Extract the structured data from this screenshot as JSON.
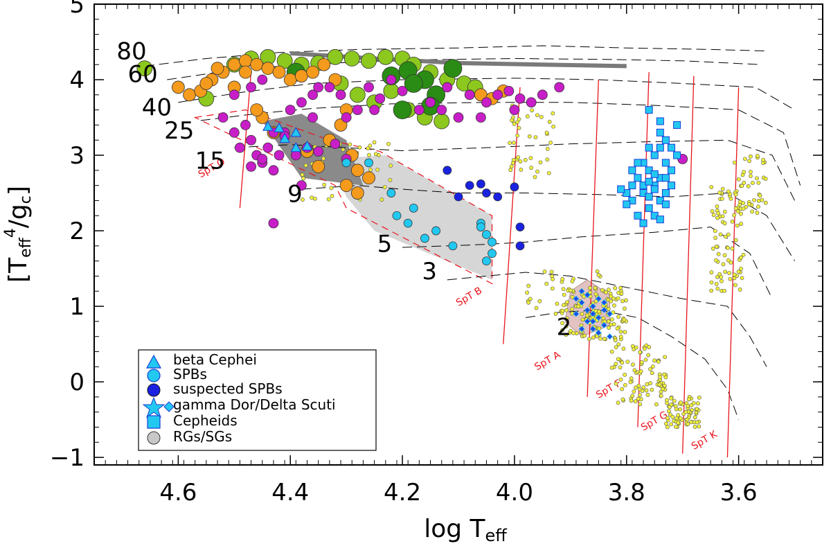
{
  "chart_data": {
    "type": "scatter",
    "title": "",
    "xlabel": "log T",
    "xlabel_sub": "eff",
    "ylabel_bracket_open": "[",
    "ylabel_T": "T",
    "ylabel_sub": "eff",
    "ylabel_sup": "4",
    "ylabel_slash": "/",
    "ylabel_g": "g",
    "ylabel_gsub": "c",
    "ylabel_bracket_close": "]",
    "xlim": [
      4.75,
      3.45
    ],
    "ylim": [
      -1.1,
      5.0
    ],
    "x_ticks": [
      {
        "value": 4.6,
        "label": "4.6"
      },
      {
        "value": 4.4,
        "label": "4.4"
      },
      {
        "value": 4.2,
        "label": "4.2"
      },
      {
        "value": 4.0,
        "label": "4.0"
      },
      {
        "value": 3.8,
        "label": "3.8"
      },
      {
        "value": 3.6,
        "label": "3.6"
      }
    ],
    "y_ticks": [
      {
        "value": 5,
        "label": "5"
      },
      {
        "value": 4,
        "label": "4"
      },
      {
        "value": 3,
        "label": "3"
      },
      {
        "value": 2,
        "label": "2"
      },
      {
        "value": 1,
        "label": "1"
      },
      {
        "value": 0,
        "label": "0"
      },
      {
        "value": -1,
        "label": "−1"
      }
    ],
    "mass_labels": [
      {
        "text": "80",
        "x": 4.71,
        "y": 4.27
      },
      {
        "text": "60",
        "x": 4.69,
        "y": 3.97
      },
      {
        "text": "40",
        "x": 4.665,
        "y": 3.53
      },
      {
        "text": "25",
        "x": 4.625,
        "y": 3.22
      },
      {
        "text": "15",
        "x": 4.57,
        "y": 2.82
      },
      {
        "text": "9",
        "x": 4.405,
        "y": 2.38
      },
      {
        "text": "5",
        "x": 4.245,
        "y": 1.72
      },
      {
        "text": "3",
        "x": 4.165,
        "y": 1.36
      },
      {
        "text": "2",
        "x": 3.925,
        "y": 0.62
      }
    ],
    "tracks": [
      {
        "mass": "80",
        "points": [
          [
            4.66,
            4.18
          ],
          [
            4.55,
            4.28
          ],
          [
            4.42,
            4.36
          ],
          [
            4.28,
            4.4
          ],
          [
            4.1,
            4.42
          ],
          [
            3.95,
            4.45
          ],
          [
            3.8,
            4.42
          ],
          [
            3.65,
            4.4
          ],
          [
            3.55,
            4.38
          ]
        ]
      },
      {
        "mass": "60",
        "points": [
          [
            4.62,
            4.0
          ],
          [
            4.5,
            4.13
          ],
          [
            4.38,
            4.2
          ],
          [
            4.2,
            4.26
          ],
          [
            4.0,
            4.28
          ],
          [
            3.85,
            4.27
          ],
          [
            3.7,
            4.25
          ],
          [
            3.56,
            4.2
          ]
        ]
      },
      {
        "mass": "40",
        "points": [
          [
            4.6,
            3.7
          ],
          [
            4.48,
            3.84
          ],
          [
            4.36,
            3.95
          ],
          [
            4.2,
            4.0
          ],
          [
            4.0,
            4.02
          ],
          [
            3.85,
            4.0
          ],
          [
            3.7,
            3.95
          ],
          [
            3.57,
            3.9
          ],
          [
            3.5,
            3.6
          ]
        ]
      },
      {
        "mass": "25",
        "points": [
          [
            4.56,
            3.46
          ],
          [
            4.46,
            3.55
          ],
          [
            4.36,
            3.62
          ],
          [
            4.22,
            3.68
          ],
          [
            4.05,
            3.7
          ],
          [
            3.9,
            3.7
          ],
          [
            3.75,
            3.66
          ],
          [
            3.6,
            3.6
          ],
          [
            3.52,
            3.3
          ],
          [
            3.49,
            2.6
          ]
        ]
      },
      {
        "mass": "15",
        "points": [
          [
            4.5,
            3.1
          ],
          [
            4.4,
            3.14
          ],
          [
            4.3,
            3.1
          ],
          [
            4.2,
            3.06
          ],
          [
            4.05,
            3.1
          ],
          [
            3.9,
            3.15
          ],
          [
            3.75,
            3.18
          ],
          [
            3.62,
            3.2
          ],
          [
            3.54,
            3.0
          ],
          [
            3.5,
            2.4
          ]
        ]
      },
      {
        "mass": "9",
        "points": [
          [
            4.38,
            2.55
          ],
          [
            4.28,
            2.6
          ],
          [
            4.2,
            2.55
          ],
          [
            4.1,
            2.5
          ],
          [
            3.98,
            2.5
          ],
          [
            3.85,
            2.48
          ],
          [
            3.72,
            2.45
          ],
          [
            3.62,
            2.5
          ],
          [
            3.55,
            2.2
          ],
          [
            3.5,
            1.6
          ]
        ]
      },
      {
        "mass": "5",
        "points": [
          [
            4.2,
            1.78
          ],
          [
            4.12,
            1.8
          ],
          [
            4.05,
            1.82
          ],
          [
            3.98,
            1.85
          ],
          [
            3.88,
            1.92
          ],
          [
            3.75,
            1.98
          ],
          [
            3.65,
            2.05
          ],
          [
            3.58,
            1.7
          ],
          [
            3.54,
            1.1
          ]
        ]
      },
      {
        "mass": "3",
        "points": [
          [
            4.12,
            1.35
          ],
          [
            4.05,
            1.4
          ],
          [
            3.98,
            1.45
          ],
          [
            3.9,
            1.4
          ],
          [
            3.8,
            1.25
          ],
          [
            3.7,
            1.1
          ],
          [
            3.62,
            1.0
          ],
          [
            3.58,
            0.6
          ],
          [
            3.55,
            0.2
          ]
        ]
      },
      {
        "mass": "2",
        "points": [
          [
            3.98,
            0.85
          ],
          [
            3.92,
            0.92
          ],
          [
            3.85,
            0.95
          ],
          [
            3.78,
            0.85
          ],
          [
            3.72,
            0.6
          ],
          [
            3.66,
            0.3
          ],
          [
            3.62,
            -0.1
          ],
          [
            3.6,
            -0.5
          ]
        ]
      }
    ],
    "zams_gray": [
      [
        4.4,
        4.35
      ],
      [
        4.25,
        4.28
      ],
      [
        4.1,
        4.22
      ],
      [
        3.95,
        4.2
      ],
      [
        3.8,
        4.18
      ]
    ],
    "spt_lines": [
      {
        "label": "SpT O",
        "x1": 4.49,
        "y1": 2.3,
        "x2": 4.47,
        "y2": 4.1,
        "label_x": 4.56,
        "label_y": 2.7
      },
      {
        "label": "SpT B",
        "x1": 4.02,
        "y1": 0.5,
        "x2": 3.99,
        "y2": 3.9,
        "label_x": 4.1,
        "label_y": 1.0
      },
      {
        "label": "SpT A",
        "x1": 3.87,
        "y1": -0.2,
        "x2": 3.85,
        "y2": 4.0,
        "label_x": 3.96,
        "label_y": 0.15
      },
      {
        "label": "SpT F",
        "x1": 3.78,
        "y1": -0.6,
        "x2": 3.76,
        "y2": 4.1,
        "label_x": 3.85,
        "label_y": -0.22
      },
      {
        "label": "SpT G",
        "x1": 3.7,
        "y1": -0.95,
        "x2": 3.68,
        "y2": 4.05,
        "label_x": 3.77,
        "label_y": -0.65
      },
      {
        "label": "SpT K",
        "x1": 3.62,
        "y1": -1.0,
        "x2": 3.6,
        "y2": 3.9,
        "label_x": 3.68,
        "label_y": -0.9
      }
    ],
    "legend": {
      "position": "bottom-left",
      "entries": [
        {
          "label": "beta Cephei",
          "marker": "triangle",
          "color": "#22c8f0"
        },
        {
          "label": "SPBs",
          "marker": "circle",
          "color": "#22c8f0"
        },
        {
          "label": "suspected SPBs",
          "marker": "circle",
          "color": "#1a22e0"
        },
        {
          "label": "gamma Dor/Delta Scuti",
          "marker": "star-diamond",
          "color": "#22c8f0"
        },
        {
          "label": "Cepheids",
          "marker": "square",
          "color": "#22c8f0"
        },
        {
          "label": "RGs/SGs",
          "marker": "circle",
          "color": "#c8c8c8"
        }
      ]
    },
    "series": [
      {
        "name": "beta Cephei",
        "color": "#22c8f0",
        "marker": "triangle",
        "x": [
          4.44,
          4.42,
          4.39,
          4.37,
          4.39,
          4.41
        ],
        "y": [
          3.38,
          3.36,
          3.3,
          3.12,
          3.1,
          3.22
        ]
      },
      {
        "name": "SPBs",
        "color": "#22c8f0",
        "marker": "circle",
        "x": [
          4.3,
          4.22,
          4.21,
          4.19,
          4.18,
          4.16,
          4.14,
          4.11,
          4.06,
          4.05,
          4.04,
          4.05,
          4.06,
          4.04,
          4.26
        ],
        "y": [
          2.9,
          2.5,
          2.2,
          2.1,
          2.3,
          1.9,
          2.0,
          1.8,
          2.1,
          1.95,
          1.7,
          1.6,
          2.05,
          1.85,
          2.9
        ]
      },
      {
        "name": "suspected SPBs",
        "color": "#1a22e0",
        "marker": "circle",
        "x": [
          4.1,
          4.08,
          4.06,
          4.05,
          4.03,
          4.0,
          3.99,
          3.99,
          4.12
        ],
        "y": [
          2.45,
          2.6,
          2.62,
          2.5,
          2.45,
          2.58,
          2.05,
          1.8,
          2.8
        ]
      },
      {
        "name": "Cepheids",
        "color": "#22c8f0",
        "marker": "square",
        "x": [
          3.79,
          3.78,
          3.77,
          3.77,
          3.76,
          3.76,
          3.75,
          3.75,
          3.74,
          3.74,
          3.73,
          3.73,
          3.72,
          3.78,
          3.79,
          3.8,
          3.76,
          3.75,
          3.74,
          3.73,
          3.72,
          3.71,
          3.77,
          3.78,
          3.76,
          3.75,
          3.74,
          3.73,
          3.74,
          3.76,
          3.79,
          3.8,
          3.81,
          3.77,
          3.75,
          3.73,
          3.72,
          3.71,
          3.74,
          3.76
        ],
        "y": [
          2.4,
          2.7,
          2.5,
          2.9,
          2.3,
          2.8,
          2.6,
          3.0,
          2.4,
          2.7,
          2.9,
          3.2,
          2.6,
          2.2,
          2.6,
          2.5,
          3.1,
          2.2,
          3.3,
          2.5,
          2.8,
          3.0,
          2.1,
          2.9,
          2.45,
          2.75,
          2.15,
          2.7,
          3.45,
          3.6,
          2.8,
          2.35,
          2.55,
          2.6,
          2.55,
          2.35,
          3.1,
          3.4,
          3.1,
          2.65
        ]
      },
      {
        "name": "gamma Dor/Delta Scuti",
        "color": "#2048e8",
        "marker": "diamond",
        "x": [
          3.89,
          3.88,
          3.87,
          3.86,
          3.85,
          3.84,
          3.87,
          3.86,
          3.85,
          3.84,
          3.83,
          3.88,
          3.89,
          3.86,
          3.85,
          3.84,
          3.83,
          3.87,
          3.86,
          3.88
        ],
        "y": [
          0.9,
          1.05,
          0.8,
          1.0,
          0.85,
          0.95,
          1.15,
          0.7,
          1.1,
          0.75,
          0.9,
          0.7,
          1.1,
          0.9,
          0.65,
          1.05,
          0.6,
          0.95,
          0.8,
          1.2
        ]
      },
      {
        "name": "RGs/SGs purple",
        "color": "#c81ec8",
        "marker": "circle",
        "x": [
          4.52,
          4.5,
          4.49,
          4.48,
          4.47,
          4.46,
          4.45,
          4.44,
          4.43,
          4.42,
          4.41,
          4.4,
          4.38,
          4.36,
          4.35,
          4.33,
          4.31,
          4.3,
          4.28,
          4.26,
          4.24,
          4.22,
          4.2,
          4.17,
          4.15,
          4.12,
          4.1,
          4.08,
          4.05,
          4.03,
          4.0,
          3.97,
          3.95,
          3.92,
          3.7,
          4.5,
          4.47,
          4.45,
          4.43,
          4.41,
          4.39,
          4.37,
          4.35,
          4.32,
          4.3,
          4.25,
          4.43,
          4.36,
          4.13,
          4.06,
          4.01,
          3.99,
          4.47,
          4.45,
          4.38
        ],
        "y": [
          3.5,
          3.3,
          3.1,
          3.4,
          3.2,
          3.0,
          2.9,
          3.1,
          2.8,
          3.0,
          3.3,
          3.6,
          3.7,
          3.8,
          3.9,
          3.9,
          3.8,
          3.5,
          3.6,
          3.9,
          3.75,
          4.0,
          3.85,
          3.6,
          3.7,
          3.9,
          3.5,
          3.8,
          3.7,
          3.8,
          3.6,
          3.7,
          3.8,
          3.9,
          2.95,
          3.8,
          3.9,
          4.0,
          3.3,
          3.25,
          3.0,
          3.1,
          3.05,
          3.15,
          2.95,
          3.6,
          2.1,
          3.5,
          3.6,
          3.5,
          3.85,
          3.75,
          2.85,
          2.95,
          2.6
        ]
      },
      {
        "name": "RGs/SGs orange",
        "color": "#f49a1c",
        "marker": "circle",
        "x": [
          4.6,
          4.58,
          4.56,
          4.54,
          4.52,
          4.5,
          4.48,
          4.46,
          4.44,
          4.42,
          4.4,
          4.38,
          4.36,
          4.34,
          4.32,
          4.3,
          4.29,
          4.28,
          4.26,
          4.45,
          4.43,
          4.33,
          4.31,
          4.06,
          4.04,
          4.02,
          4.5,
          4.48,
          4.55,
          4.53,
          4.46,
          4.37,
          4.35,
          4.3,
          4.28
        ],
        "y": [
          3.9,
          3.8,
          3.85,
          4.0,
          4.1,
          4.2,
          4.25,
          4.2,
          4.15,
          4.1,
          4.0,
          4.05,
          4.1,
          4.2,
          4.0,
          3.6,
          3.0,
          2.8,
          2.7,
          3.5,
          3.3,
          3.2,
          3.4,
          3.8,
          3.75,
          3.85,
          3.9,
          4.1,
          3.95,
          4.15,
          3.6,
          3.05,
          2.85,
          2.6,
          2.5
        ]
      },
      {
        "name": "RGs/SGs light green",
        "color": "#8cc81e",
        "marker": "circle",
        "x": [
          4.66,
          4.5,
          4.47,
          4.44,
          4.41,
          4.38,
          4.35,
          4.32,
          4.29,
          4.26,
          4.23,
          4.2,
          4.18,
          4.15,
          4.12,
          4.09,
          4.07,
          4.28,
          4.25,
          4.22,
          4.19,
          4.16,
          4.13,
          4.31,
          4.55
        ],
        "y": [
          4.15,
          4.2,
          4.28,
          4.3,
          4.25,
          4.2,
          4.22,
          4.3,
          4.28,
          4.25,
          4.3,
          4.28,
          4.2,
          4.1,
          4.0,
          3.95,
          3.9,
          3.8,
          3.7,
          3.85,
          3.6,
          3.5,
          3.45,
          3.95,
          3.75
        ]
      },
      {
        "name": "RGs/SGs dark green",
        "color": "#2a8c14",
        "marker": "circle",
        "x": [
          4.39,
          4.22,
          4.19,
          4.16,
          4.14,
          4.11,
          4.18,
          4.15,
          4.2
        ],
        "y": [
          4.1,
          4.05,
          4.12,
          4.0,
          3.8,
          4.15,
          3.95,
          3.65,
          3.6
        ]
      }
    ]
  }
}
